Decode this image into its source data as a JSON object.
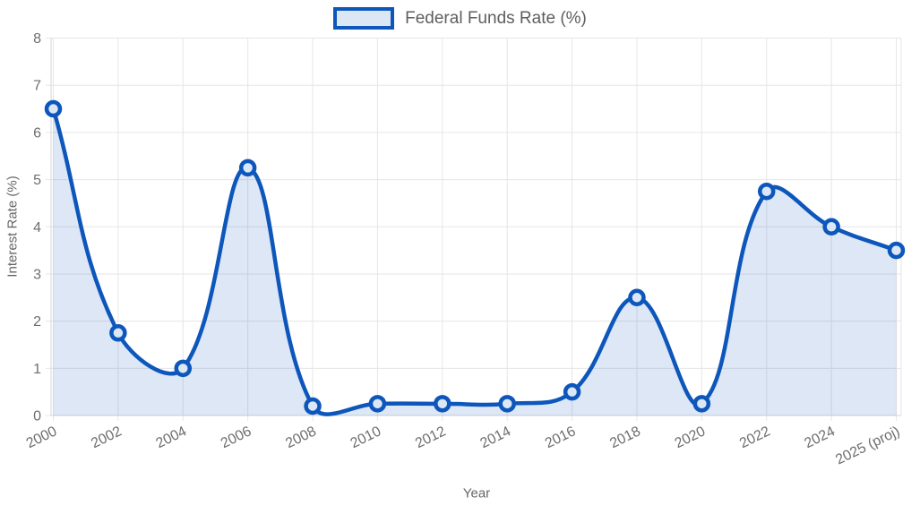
{
  "legend": {
    "label": "Federal Funds Rate (%)"
  },
  "colors": {
    "line": "#0d56bb",
    "area_fill": "rgba(13, 86, 187, 0.14)",
    "marker_fill": "#dce7f6",
    "grid": "#e6e6e6",
    "axis_border": "#d4d4d4",
    "tick_text": "#6e6e6e",
    "axis_title_text": "#666666"
  },
  "chart_data": {
    "type": "area",
    "title": "Federal Funds Rate (%)",
    "categories": [
      "2000",
      "2002",
      "2004",
      "2006",
      "2008",
      "2010",
      "2012",
      "2014",
      "2016",
      "2018",
      "2020",
      "2022",
      "2024",
      "2025 (proj)"
    ],
    "series": [
      {
        "name": "Federal Funds Rate (%)",
        "values": [
          6.5,
          1.75,
          1.0,
          5.25,
          0.2,
          0.25,
          0.25,
          0.25,
          0.5,
          2.5,
          0.25,
          4.75,
          4.0,
          3.5
        ]
      }
    ],
    "xlabel": "Year",
    "ylabel": "Interest Rate (%)",
    "ylim": [
      0,
      8
    ],
    "yticks": [
      0,
      1,
      2,
      3,
      4,
      5,
      6,
      7,
      8
    ],
    "grid": true,
    "legend_position": "top",
    "curve_tension": 0.4
  }
}
